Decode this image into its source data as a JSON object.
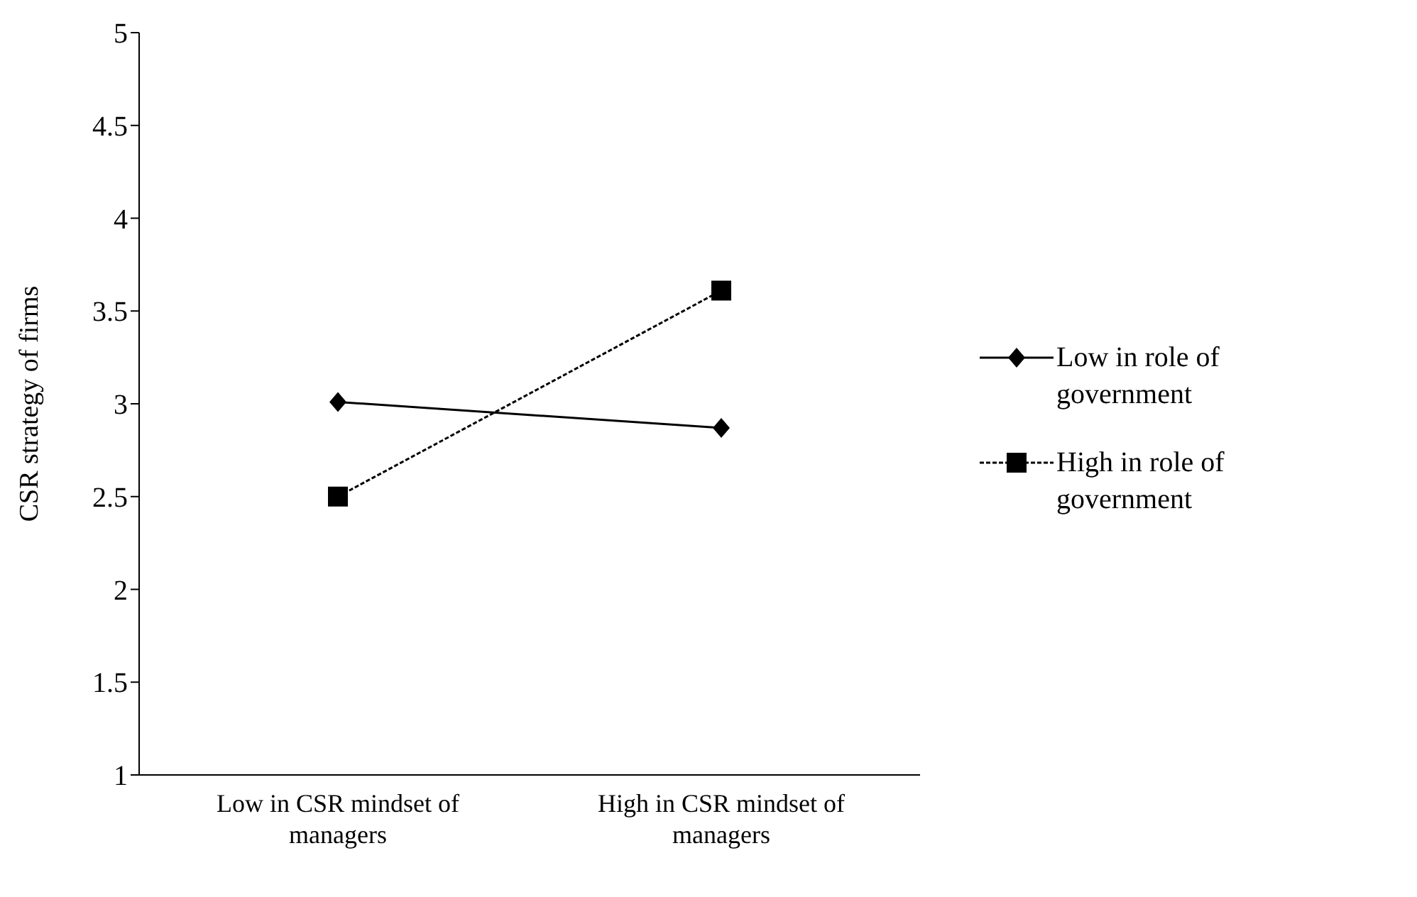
{
  "chart_data": {
    "type": "line",
    "ylabel": "CSR strategy of firms",
    "categories": [
      "Low in CSR mindset of managers",
      "High in CSR mindset of managers"
    ],
    "ylim": [
      1,
      5
    ],
    "yticks": [
      1,
      1.5,
      2,
      2.5,
      3,
      3.5,
      4,
      4.5,
      5
    ],
    "grid": false,
    "legend": "right",
    "series": [
      {
        "name": "Low in role of government",
        "color": "#000000",
        "values": [
          3.01,
          2.87
        ],
        "marker": "diamond",
        "line_style": "solid"
      },
      {
        "name": "High in role of government",
        "color": "#000000",
        "values": [
          2.5,
          3.61
        ],
        "marker": "square",
        "line_style": "dashed"
      }
    ]
  }
}
